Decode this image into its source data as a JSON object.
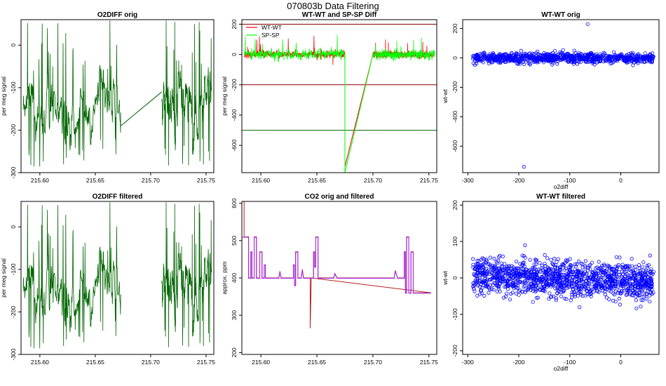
{
  "figure_title": "070803b   Data Filtering",
  "chart_data": [
    {
      "type": "line",
      "title": "O2DIFF orig",
      "xlabel": "",
      "ylabel": "per meg signal",
      "xlim": [
        215.583,
        215.757
      ],
      "ylim": [
        -300,
        60
      ],
      "xticks": [
        215.6,
        215.65,
        215.7,
        215.75
      ],
      "xtick_labels": [
        "215.60",
        "215.65",
        "215.70",
        "215.75"
      ],
      "yticks": [
        0,
        -100,
        -200,
        -300
      ],
      "ytick_labels": [
        "0",
        "-100",
        "-200",
        "-300"
      ],
      "series": [
        {
          "name": "o2diff",
          "color": "#006400",
          "segments": [
            [
              215.585,
              215.673
            ],
            [
              215.71,
              215.755
            ]
          ],
          "connected_gap": true,
          "gap_line": [
            [
              215.673,
              -190
            ],
            [
              215.71,
              -110
            ]
          ],
          "mean": -130,
          "spread": 90,
          "peaks": [
            60,
            55,
            45,
            65
          ]
        }
      ],
      "hlines": []
    },
    {
      "type": "line",
      "title": "WT-WT and SP-SP Diff",
      "xlabel": "",
      "ylabel": "per meg signal",
      "xlim": [
        215.583,
        215.757
      ],
      "ylim": [
        -780,
        230
      ],
      "xticks": [
        215.6,
        215.65,
        215.7,
        215.75
      ],
      "xtick_labels": [
        "215.60",
        "215.65",
        "215.70",
        "215.75"
      ],
      "yticks": [
        200,
        0,
        -200,
        -400,
        -600
      ],
      "ytick_labels": [
        "200",
        "0",
        "-200",
        "-400",
        "-600"
      ],
      "legend": [
        {
          "label": "WT-WT",
          "color": "#ff0000"
        },
        {
          "label": "SP-SP",
          "color": "#00ff00"
        }
      ],
      "series": [
        {
          "name": "WT-WT",
          "color": "#ff0000",
          "segments": [
            [
              215.585,
              215.675
            ],
            [
              215.7,
              215.755
            ]
          ],
          "mean": 0,
          "spread": 25,
          "drop_to": -740
        },
        {
          "name": "SP-SP",
          "color": "#00ff00",
          "segments": [
            [
              215.585,
              215.675
            ],
            [
              215.7,
              215.755
            ]
          ],
          "mean": 0,
          "spread": 35,
          "drop_to": -780
        }
      ],
      "hlines": [
        {
          "y": 200,
          "color": "#8b0000"
        },
        {
          "y": -200,
          "color": "#8b0000"
        },
        {
          "y": -500,
          "color": "#006400"
        }
      ]
    },
    {
      "type": "scatter",
      "title": "WT-WT orig",
      "xlabel": "o2diff",
      "ylabel": "wt-wt",
      "xlim": [
        -310,
        75
      ],
      "ylim": [
        -780,
        260
      ],
      "xticks": [
        -300,
        -200,
        -100,
        0
      ],
      "xtick_labels": [
        "-300",
        "-200",
        "-100",
        "0"
      ],
      "yticks": [
        200,
        0,
        -200,
        -400,
        -600
      ],
      "ytick_labels": [
        "200",
        "0",
        "-200",
        "-400",
        "-600"
      ],
      "series": [
        {
          "name": "points",
          "color": "#0000ff",
          "x_range": [
            -290,
            65
          ],
          "y_center": 0,
          "y_spread": 30,
          "outliers": [
            [
              -190,
              -740
            ],
            [
              -65,
              230
            ]
          ]
        }
      ]
    },
    {
      "type": "line",
      "title": "O2DIFF filtered",
      "xlabel": "",
      "ylabel": "per meg signal",
      "xlim": [
        215.583,
        215.757
      ],
      "ylim": [
        -300,
        60
      ],
      "xticks": [
        215.6,
        215.65,
        215.7,
        215.75
      ],
      "xtick_labels": [
        "215.60",
        "215.65",
        "215.70",
        "215.75"
      ],
      "yticks": [
        0,
        -100,
        -200,
        -300
      ],
      "ytick_labels": [
        "0",
        "-100",
        "-200",
        "-300"
      ],
      "series": [
        {
          "name": "o2diff",
          "color": "#006400",
          "segments": [
            [
              215.585,
              215.673
            ],
            [
              215.71,
              215.755
            ]
          ],
          "connected_gap": false,
          "mean": -130,
          "spread": 90,
          "peaks": [
            60,
            55,
            45,
            65
          ]
        }
      ],
      "hlines": []
    },
    {
      "type": "line",
      "title": "CO2 orig and filtered",
      "xlabel": "",
      "ylabel": "approx. ppm",
      "xlim": [
        215.583,
        215.757
      ],
      "ylim": [
        195,
        605
      ],
      "xticks": [
        215.6,
        215.65,
        215.7,
        215.75
      ],
      "xtick_labels": [
        "215.60",
        "215.65",
        "215.70",
        "215.75"
      ],
      "yticks": [
        200,
        300,
        400,
        500,
        600
      ],
      "ytick_labels": [
        "200",
        "300",
        "400",
        "500",
        "600"
      ],
      "series": [
        {
          "name": "co2 orig",
          "color": "#b22222",
          "baseline": 398
        },
        {
          "name": "co2 filtered",
          "color": "#a020f0",
          "baseline": 398
        }
      ],
      "hlines": []
    },
    {
      "type": "scatter",
      "title": "WT-WT filtered",
      "xlabel": "o2diff",
      "ylabel": "wt-wt",
      "xlim": [
        -310,
        75
      ],
      "ylim": [
        -210,
        210
      ],
      "xticks": [
        -300,
        -200,
        -100,
        0
      ],
      "xtick_labels": [
        "-300",
        "-200",
        "-100",
        "0"
      ],
      "yticks": [
        200,
        100,
        0,
        -100,
        -200
      ],
      "ytick_labels": [
        "200",
        "100",
        "0",
        "-100",
        "-200"
      ],
      "series": [
        {
          "name": "points",
          "color": "#0000ff",
          "x_range": [
            -290,
            65
          ],
          "y_center": 0,
          "y_spread": 35
        }
      ]
    }
  ]
}
